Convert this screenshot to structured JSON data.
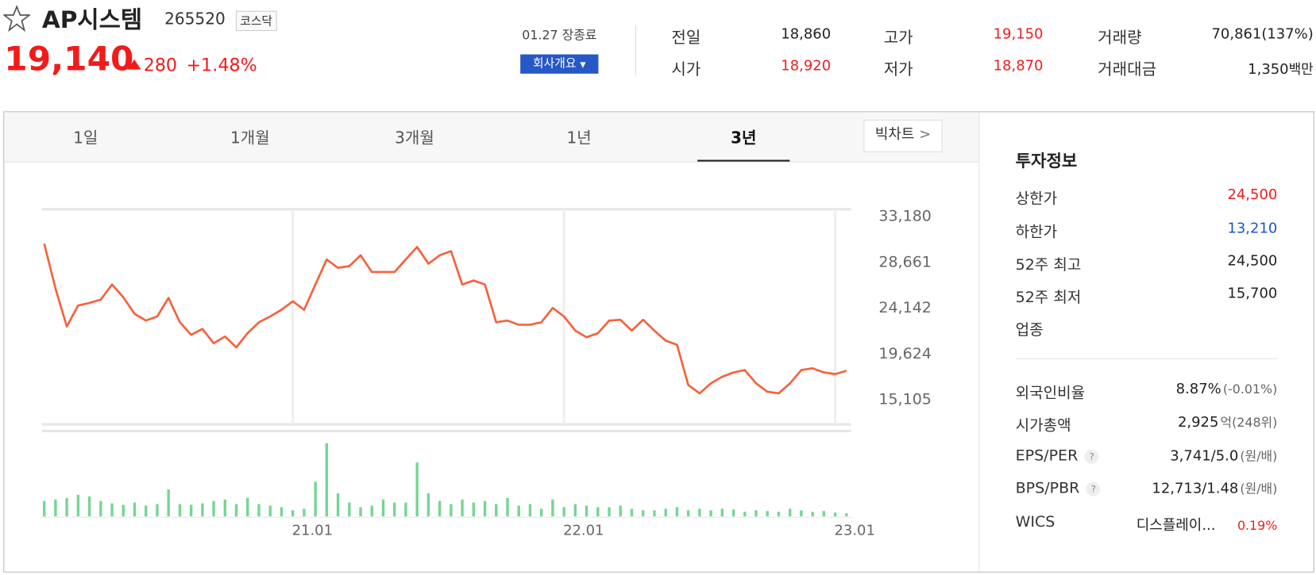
{
  "header": {
    "name": "AP시스템",
    "code": "265520",
    "market": "코스닥",
    "price": "19,140",
    "change": "280",
    "change_rate": "+1.48%",
    "color": "#f21b1b"
  },
  "status": {
    "date": "01.27 장종료",
    "button": "회사개요"
  },
  "summary": [
    {
      "label": "전일",
      "value": "18,860"
    },
    {
      "label": "시가",
      "value": "18,920",
      "color": "#f21b1b"
    },
    {
      "label": "고가",
      "value": "19,150",
      "color": "#f21b1b"
    },
    {
      "label": "저가",
      "value": "18,870",
      "color": "#f21b1b"
    },
    {
      "label": "거래량",
      "value": "70,861(137%)"
    },
    {
      "label": "거래대금",
      "value": "1,350",
      "unit": "백만"
    }
  ],
  "tabs": {
    "items": [
      "1일",
      "1개월",
      "3개월",
      "1년",
      "3년"
    ],
    "active": 4,
    "big_chart": "빅차트"
  },
  "chart_data": {
    "type": "line",
    "x": [
      1,
      1.5,
      2,
      2.5,
      3,
      3.5,
      4,
      4.5,
      5,
      5.5,
      6,
      6.5,
      7,
      7.5,
      8,
      8.5,
      9,
      9.5,
      10,
      10.5,
      11,
      11.5,
      12,
      12.5,
      13,
      13.5,
      14,
      14.5,
      15,
      15.5,
      16,
      16.5,
      17,
      17.5,
      18,
      18.5,
      19,
      19.5,
      20,
      20.5,
      21,
      21.5,
      22,
      22.5,
      23,
      23.5,
      24,
      24.5,
      25,
      25.5,
      26,
      26.5,
      27,
      27.5,
      28,
      28.5,
      29,
      29.5,
      30,
      30.5,
      31,
      31.5,
      32,
      32.5,
      33,
      33.5,
      34,
      34.5,
      35,
      35.5,
      36,
      36.5
    ],
    "series": [
      {
        "color": "#f7603a",
        "values": [
          30370,
          25920,
          22200,
          24270,
          24520,
          24850,
          26330,
          25090,
          23440,
          22780,
          23190,
          25010,
          22620,
          21380,
          21960,
          20550,
          21210,
          20140,
          21540,
          22620,
          23190,
          23850,
          24680,
          23850,
          26330,
          28810,
          27980,
          28150,
          29220,
          27570,
          27570,
          27570,
          28810,
          30040,
          28390,
          29220,
          29630,
          26330,
          26740,
          26330,
          22620,
          22780,
          22370,
          22370,
          22620,
          24020,
          23190,
          21790,
          21130,
          21540,
          22780,
          22860,
          21790,
          22860,
          21790,
          20800,
          20390,
          16430,
          15600,
          16590,
          17250,
          17670,
          17910,
          16590,
          15770,
          15600,
          16590,
          17910,
          18080,
          17670,
          17500,
          17830
        ]
      },
      {
        "color": "#74d693",
        "type": "bar",
        "axis": "y2",
        "values": [
          20,
          22,
          24,
          28,
          26,
          20,
          17,
          15,
          18,
          14,
          16,
          35,
          16,
          15,
          17,
          20,
          22,
          16,
          24,
          16,
          14,
          12,
          8,
          10,
          45,
          95,
          30,
          18,
          12,
          14,
          22,
          18,
          18,
          70,
          30,
          20,
          16,
          22,
          18,
          20,
          16,
          24,
          14,
          16,
          10,
          22,
          12,
          16,
          14,
          12,
          12,
          14,
          10,
          8,
          8,
          10,
          12,
          8,
          10,
          8,
          10,
          9,
          6,
          8,
          7,
          6,
          10,
          8,
          6,
          7,
          5,
          4
        ]
      }
    ],
    "xlim": [
      0.9,
      36.7
    ],
    "xticks": [
      {
        "value": 12,
        "label": "21.01"
      },
      {
        "value": 24,
        "label": "22.01"
      },
      {
        "value": 36,
        "label": "23.01"
      }
    ],
    "ylim": [
      12550,
      33760
    ],
    "yticks": [
      {
        "value": 33180,
        "label": "33,180"
      },
      {
        "value": 28661,
        "label": "28,661"
      },
      {
        "value": 24142,
        "label": "24,142"
      },
      {
        "value": 19624,
        "label": "19,624"
      },
      {
        "value": 15105,
        "label": "15,105"
      }
    ],
    "y2lim": [
      0,
      100
    ]
  },
  "invest": {
    "title": "투자정보",
    "rows": [
      {
        "label": "상한가",
        "value": "24,500",
        "color": "#f21b1b"
      },
      {
        "label": "하한가",
        "value": "13,210",
        "color": "#1a55c9"
      },
      {
        "label": "52주 최고",
        "value": "24,500"
      },
      {
        "label": "52주 최저",
        "value": "15,700"
      },
      {
        "label": "업종"
      }
    ],
    "rows2": [
      {
        "label": "외국인비율",
        "value": "8.87%",
        "note": "(-0.01%)"
      },
      {
        "label": "시가총액",
        "value": "2,925",
        "note": "억(248위)"
      },
      {
        "label": "EPS/PER",
        "value": "3,741/5.0",
        "note": "(원/배)",
        "help": true
      },
      {
        "label": "BPS/PBR",
        "value": "12,713/1.48",
        "note": "(원/배)",
        "help": true
      },
      {
        "label": "WICS",
        "value": "디스플레이...",
        "note": "0.19%",
        "note_color": "#f21b1b"
      }
    ]
  }
}
